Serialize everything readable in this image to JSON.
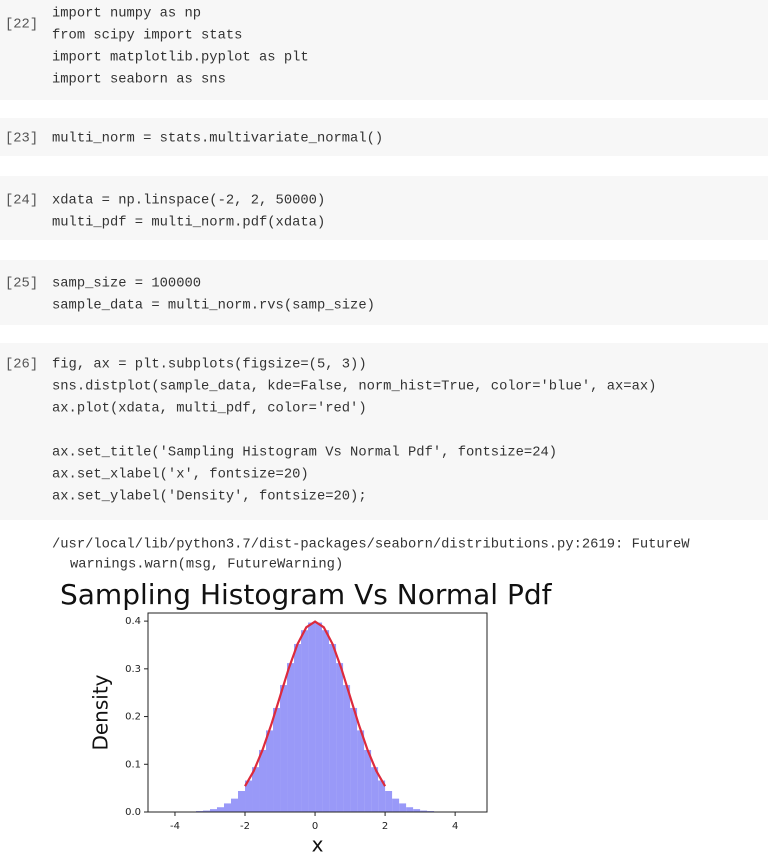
{
  "cells": [
    {
      "prompt": "[22]",
      "blocks": [
        [
          "import numpy as np",
          "from scipy import stats",
          "import matplotlib.pyplot as plt",
          "import seaborn as sns"
        ]
      ]
    },
    {
      "prompt": "[23]",
      "blocks": [
        [
          "multi_norm = stats.multivariate_normal()"
        ]
      ]
    },
    {
      "prompt": "[24]",
      "blocks": [
        [
          "xdata = np.linspace(-2, 2, 50000)",
          "multi_pdf = multi_norm.pdf(xdata)"
        ]
      ]
    },
    {
      "prompt": "[25]",
      "blocks": [
        [
          "samp_size = 100000",
          "sample_data = multi_norm.rvs(samp_size)"
        ]
      ]
    },
    {
      "prompt": "[26]",
      "blocks": [
        [
          "fig, ax = plt.subplots(figsize=(5, 3))",
          "sns.distplot(sample_data, kde=False, norm_hist=True, color='blue', ax=ax)",
          "ax.plot(xdata, multi_pdf, color='red')"
        ],
        [
          "ax.set_title('Sampling Histogram Vs Normal Pdf', fontsize=24)",
          "ax.set_xlabel('x', fontsize=20)",
          "ax.set_ylabel('Density', fontsize=20);"
        ]
      ]
    }
  ],
  "output": [
    "/usr/local/lib/python3.7/dist-packages/seaborn/distributions.py:2619: FutureW",
    "warnings.warn(msg, FutureWarning)"
  ],
  "chart_data": {
    "type": "histogram",
    "title": "Sampling Histogram Vs Normal Pdf",
    "x_label": "x",
    "y_label": "Density",
    "bins": [
      -4.4,
      -4.2,
      -4.0,
      -3.8,
      -3.6,
      -3.4,
      -3.2,
      -3.0,
      -2.8,
      -2.6,
      -2.4,
      -2.2,
      -2.0,
      -1.8,
      -1.6,
      -1.4,
      -1.2,
      -1.0,
      -0.8,
      -0.6,
      -0.4,
      -0.2,
      0,
      0.2,
      0.4,
      0.6,
      0.8,
      1.0,
      1.2,
      1.4,
      1.6,
      1.8,
      2.0,
      2.2,
      2.4,
      2.6,
      2.8,
      3.0,
      3.2,
      3.4,
      3.6,
      3.8,
      4.0,
      4.2,
      4.4
    ],
    "values": [
      0,
      0,
      0,
      0,
      0.001,
      0.002,
      0.003,
      0.006,
      0.01,
      0.018,
      0.028,
      0.044,
      0.066,
      0.094,
      0.13,
      0.171,
      0.218,
      0.266,
      0.312,
      0.352,
      0.381,
      0.397,
      0.397,
      0.381,
      0.352,
      0.312,
      0.266,
      0.218,
      0.171,
      0.13,
      0.094,
      0.066,
      0.044,
      0.028,
      0.018,
      0.01,
      0.006,
      0.003,
      0.002,
      0.001,
      0,
      0,
      0,
      0
    ],
    "color": "#9999f8",
    "pdf_line": {
      "x": [
        -2,
        -1.75,
        -1.5,
        -1.25,
        -1,
        -0.75,
        -0.5,
        -0.25,
        0,
        0.25,
        0.5,
        0.75,
        1,
        1.25,
        1.5,
        1.75,
        2
      ],
      "values": [
        0.054,
        0.086,
        0.13,
        0.183,
        0.242,
        0.301,
        0.352,
        0.387,
        0.399,
        0.387,
        0.352,
        0.301,
        0.242,
        0.183,
        0.13,
        0.086,
        0.054
      ],
      "color": "#dd2a3c"
    },
    "xlim": [
      -4.77,
      4.91
    ],
    "ylim": [
      0,
      0.417
    ],
    "xticks": [
      -4,
      -2,
      0,
      2,
      4
    ],
    "yticks": [
      {
        "value": 0,
        "label": "0.0"
      },
      0.1,
      0.2,
      0.3,
      0.4
    ]
  }
}
